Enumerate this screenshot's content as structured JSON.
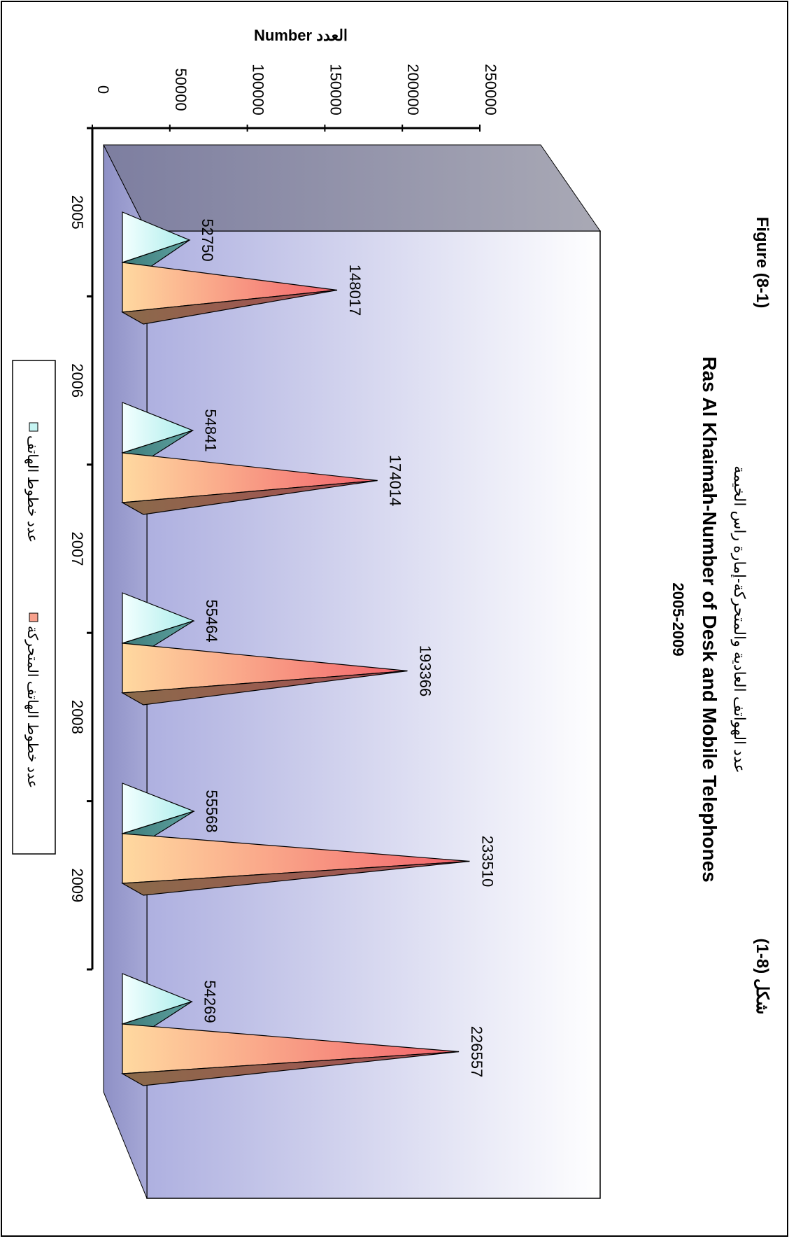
{
  "chart_data": {
    "type": "bar",
    "bar_shape": "pyramid-3d",
    "orientation": "rotated-90-clockwise",
    "figure_label": "Figure (8-1)",
    "figure_label_ar": "شكل (8-1)",
    "title_ar": "عدد الهواتف العادية والمتحركة-إمارة راس الخيمة",
    "title": "Ras Al Khaimah-Number of Desk and Mobile Telephones",
    "subtitle": "2005-2009",
    "ylabel": "Number العدد",
    "xlabel": "",
    "ylim": [
      0,
      250000
    ],
    "yticks": [
      0,
      50000,
      100000,
      150000,
      200000,
      250000
    ],
    "ytick_labels": [
      "0",
      "50000",
      "100000",
      "150000",
      "200000",
      "250000"
    ],
    "categories": [
      "2005",
      "2006",
      "2007",
      "2008",
      "2009"
    ],
    "series": [
      {
        "name": "عدد خطوط الهاتف",
        "values": [
          52750,
          54841,
          55464,
          55568,
          54269
        ],
        "color": "#c6f5f3"
      },
      {
        "name": "عدد خطوط الهاتف المتحركة",
        "values": [
          148017,
          174014,
          193366,
          233510,
          226557
        ],
        "color": "#f7a08c"
      }
    ],
    "data_labels": [
      [
        "52750",
        "54841",
        "55464",
        "55568",
        "54269"
      ],
      [
        "148017",
        "174014",
        "193366",
        "233510",
        "226557"
      ]
    ],
    "legend_position": "bottom",
    "grid": false,
    "colors": {
      "frame": "#000000",
      "floor": "#8c8c9e",
      "wall_light": "#ffffff",
      "wall_dark": "#b9b9e6"
    }
  }
}
